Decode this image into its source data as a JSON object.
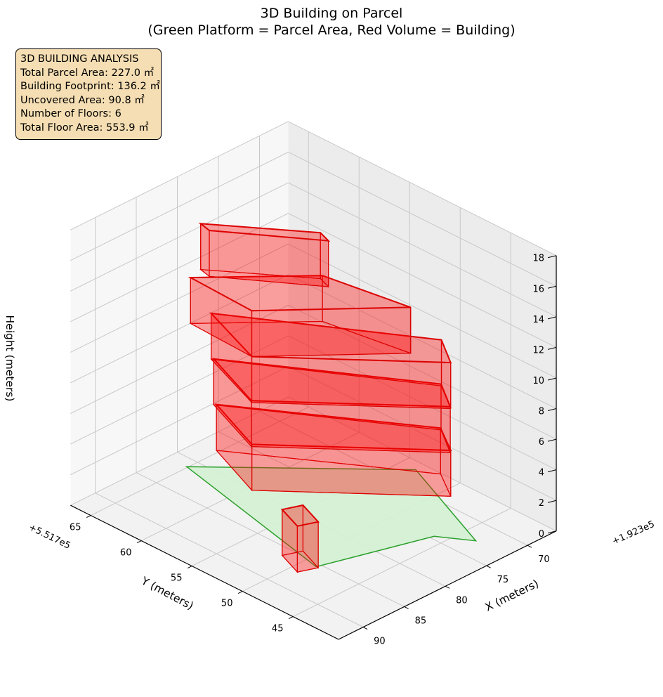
{
  "title_line1": "3D Building on Parcel",
  "title_line2": "(Green Platform = Parcel Area, Red Volume = Building)",
  "info_box": {
    "heading": "3D BUILDING ANALYSIS",
    "line1": "Total Parcel Area: 227.0 ㎡",
    "line2": "Building Footprint: 136.2 ㎡",
    "line3": "Uncovered Area: 90.8 ㎡",
    "line4": "Number of Floors: 6",
    "line5": "Total Floor Area: 553.9 ㎡"
  },
  "chart_data": {
    "type": "3d-polygons",
    "xlabel": "X (meters)",
    "ylabel": "Y (meters)",
    "zlabel": "Height (meters)",
    "x_offset_label": "+1.923e5",
    "y_offset_label": "+5.517e5",
    "x_ticks": [
      70,
      75,
      80,
      85,
      90
    ],
    "y_ticks": [
      45,
      50,
      55,
      60,
      65
    ],
    "z_ticks": [
      0,
      2,
      4,
      6,
      8,
      10,
      12,
      14,
      16,
      18
    ],
    "xlim": [
      66.5,
      93
    ],
    "ylim": [
      40.5,
      67
    ],
    "zlim": [
      0,
      18
    ],
    "grid": true,
    "colors": {
      "parcel_fill": "#d4f0d4",
      "parcel_edge": "#2ca02c",
      "building_fill": "#ff0000",
      "building_edge": "#dd0000"
    },
    "parcel": {
      "name": "Parcel Area",
      "z": 0,
      "polygon": [
        [
          67.6,
          53.5
        ],
        [
          81.2,
          65.1
        ],
        [
          85.5,
          48.8
        ],
        [
          74.6,
          46.0
        ],
        [
          72.6,
          43.5
        ]
      ]
    },
    "building": {
      "name": "Building",
      "blocks": [
        {
          "footprint": [
            [
              85.5,
              48.6
            ],
            [
              87.3,
              49.2
            ],
            [
              86.2,
              51.6
            ],
            [
              84.4,
              51.0
            ]
          ],
          "z_bottom": 0,
          "z_top": 3
        },
        {
          "footprint": [
            [
              72.2,
              47.3
            ],
            [
              83.0,
              60.7
            ],
            [
              85.7,
              55.0
            ],
            [
              74.3,
              44.6
            ]
          ],
          "z_bottom": 3,
          "z_top": 6
        },
        {
          "footprint": [
            [
              72.4,
              47.1
            ],
            [
              83.2,
              60.8
            ],
            [
              86.0,
              54.8
            ],
            [
              74.6,
              44.4
            ]
          ],
          "z_bottom": 6,
          "z_top": 9
        },
        {
          "footprint": [
            [
              72.6,
              46.9
            ],
            [
              83.4,
              60.9
            ],
            [
              86.2,
              54.6
            ],
            [
              74.8,
              44.2
            ]
          ],
          "z_bottom": 9,
          "z_top": 12
        },
        {
          "footprint": [
            [
              77.6,
              54.6
            ],
            [
              85.9,
              60.9
            ],
            [
              86.2,
              54.6
            ],
            [
              76.1,
              47.1
            ]
          ],
          "z_bottom": 12,
          "z_top": 15
        },
        {
          "footprint": [
            [
              78.1,
              54.4
            ],
            [
              84.3,
              61.2
            ],
            [
              84.6,
              60.1
            ],
            [
              78.6,
              53.2
            ]
          ],
          "z_bottom": 15,
          "z_top": 18
        }
      ]
    }
  }
}
